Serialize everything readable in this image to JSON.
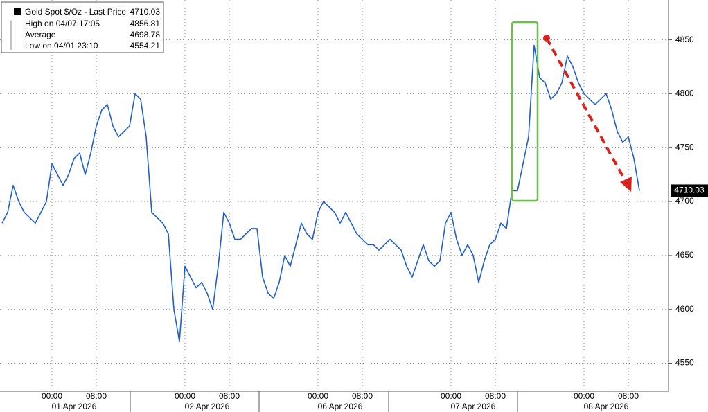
{
  "chart_data": {
    "type": "line",
    "series": [
      {
        "name": "Gold Spot $/Oz - Last Price",
        "color": "#1f5fcf",
        "values": [
          4680,
          4690,
          4715,
          4700,
          4690,
          4685,
          4680,
          4690,
          4700,
          4735,
          4725,
          4715,
          4725,
          4740,
          4745,
          4725,
          4745,
          4770,
          4785,
          4790,
          4770,
          4760,
          4765,
          4770,
          4800,
          4795,
          4760,
          4690,
          4685,
          4680,
          4670,
          4600,
          4570,
          4640,
          4630,
          4620,
          4625,
          4615,
          4600,
          4640,
          4690,
          4680,
          4665,
          4665,
          4670,
          4675,
          4675,
          4630,
          4615,
          4610,
          4625,
          4650,
          4640,
          4660,
          4680,
          4670,
          4665,
          4690,
          4700,
          4695,
          4690,
          4680,
          4690,
          4680,
          4670,
          4665,
          4660,
          4660,
          4655,
          4660,
          4665,
          4660,
          4655,
          4640,
          4630,
          4645,
          4660,
          4645,
          4640,
          4645,
          4680,
          4690,
          4665,
          4650,
          4660,
          4650,
          4625,
          4645,
          4660,
          4665,
          4680,
          4675,
          4710,
          4710,
          4735,
          4760,
          4845,
          4815,
          4810,
          4795,
          4800,
          4810,
          4835,
          4825,
          4810,
          4800,
          4795,
          4790,
          4795,
          4800,
          4785,
          4765,
          4755,
          4760,
          4740,
          4710
        ]
      }
    ],
    "categories": [
      null,
      null,
      null,
      null,
      null,
      null,
      null,
      null,
      null,
      "00:00",
      null,
      null,
      null,
      null,
      null,
      null,
      null,
      "08:00",
      null,
      null,
      null,
      null,
      null,
      null,
      null,
      null,
      null,
      null,
      null,
      null,
      null,
      null,
      null,
      "00:00",
      null,
      null,
      null,
      null,
      null,
      null,
      null,
      "08:00",
      null,
      null,
      null,
      null,
      null,
      null,
      null,
      null,
      null,
      null,
      null,
      null,
      null,
      null,
      null,
      "00:00",
      null,
      null,
      null,
      null,
      null,
      null,
      null,
      "08:00",
      null,
      null,
      null,
      null,
      null,
      null,
      null,
      null,
      null,
      null,
      null,
      null,
      null,
      null,
      null,
      "00:00",
      null,
      null,
      null,
      null,
      null,
      null,
      null,
      "08:00",
      null,
      null,
      null,
      null,
      null,
      null,
      null,
      null,
      null,
      null,
      null,
      null,
      null,
      null,
      null,
      "00:00",
      null,
      null,
      null,
      null,
      null,
      null,
      null,
      "08:00",
      null,
      null
    ],
    "x_groups": [
      "01 Apr 2026",
      "02 Apr 2026",
      "06 Apr 2026",
      "07 Apr 2026",
      "08 Apr 2026"
    ],
    "ylim": [
      4524,
      4887
    ],
    "yticks": [
      4550,
      4600,
      4650,
      4700,
      4750,
      4800,
      4850
    ],
    "grid": true,
    "last_price": 4710.03,
    "legend": [
      {
        "label": "High on 04/07 17:05",
        "value": 4856.81
      },
      {
        "label": "Average",
        "value": 4698.78
      },
      {
        "label": "Low on 04/01 23:10",
        "value": 4554.21
      }
    ]
  }
}
